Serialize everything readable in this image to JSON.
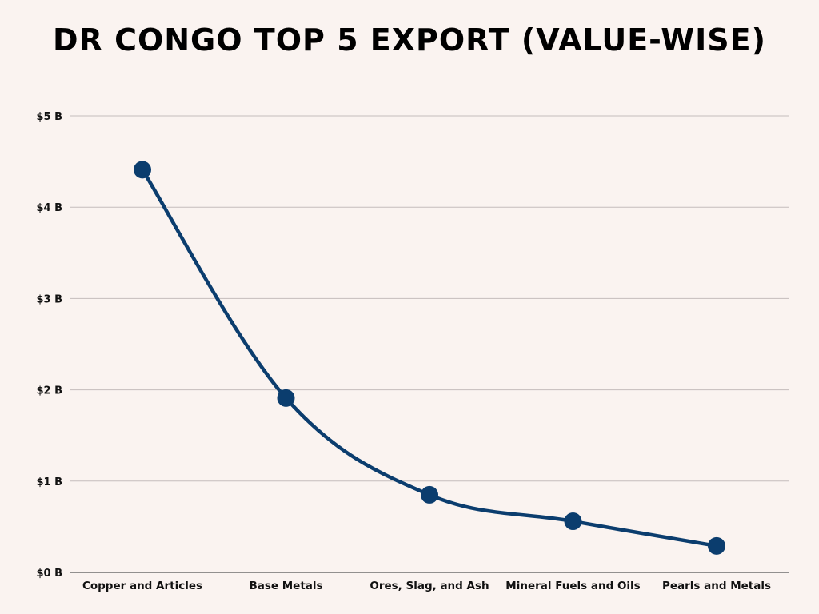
{
  "chart_data": {
    "type": "line",
    "title": "DR CONGO TOP 5 EXPORT (VALUE-WISE)",
    "xlabel": "",
    "ylabel": "",
    "categories": [
      "Copper and Articles",
      "Base Metals",
      "Ores, Slag, and Ash",
      "Mineral Fuels and Oils",
      "Pearls and Metals"
    ],
    "series": [
      {
        "values": [
          4.41,
          1.91,
          0.85,
          0.56,
          0.29
        ]
      }
    ],
    "ylim": [
      0,
      5
    ],
    "yticks": [
      0,
      1,
      2,
      3,
      4,
      5
    ],
    "ytick_labels": [
      "$0 B",
      "$1 B",
      "$2 B",
      "$3 B",
      "$4 B",
      "$5 B"
    ],
    "grid": true,
    "smooth": true,
    "legend": "none",
    "colors": {
      "background": "#faf3f0",
      "line": "#0b3d6e",
      "grid": "#c4bcbc",
      "axis": "#555555",
      "text": "#111111"
    }
  }
}
